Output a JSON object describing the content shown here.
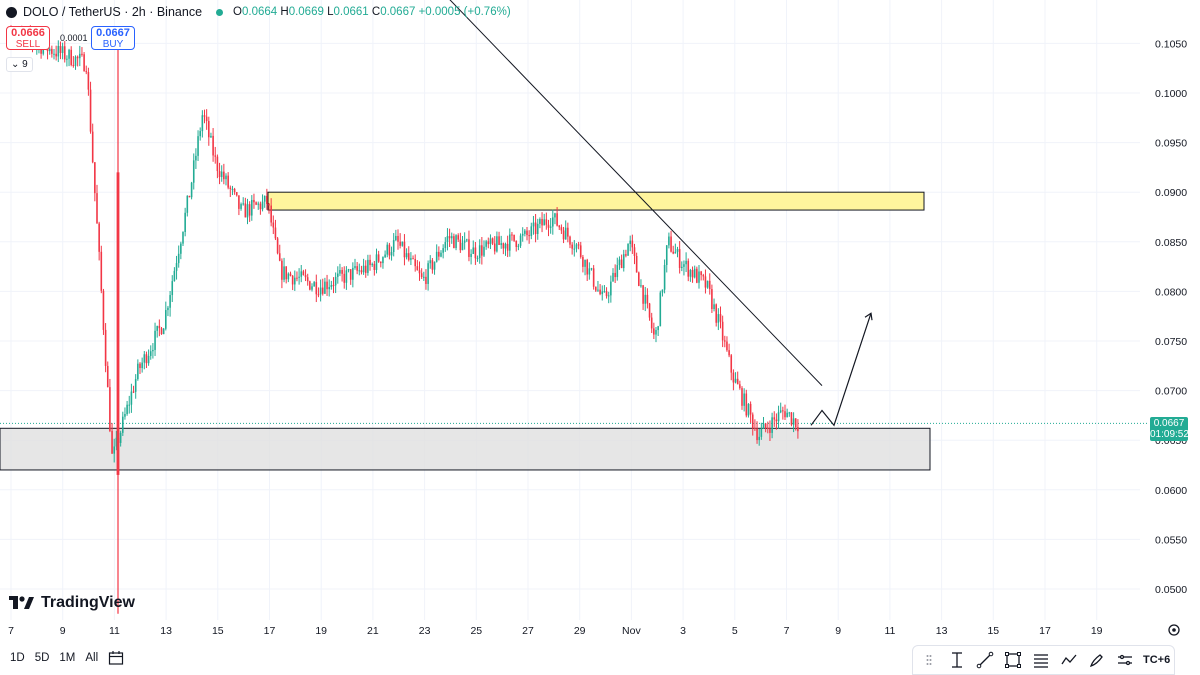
{
  "header": {
    "symbol": "DOLO / TetherUS · 2h · Binance",
    "open": "0.0664",
    "high": "0.0669",
    "low": "0.0661",
    "close": "0.0667",
    "change": "+0.0005 (+0.76%)"
  },
  "trade": {
    "sell_price": "0.0666",
    "sell_label": "SELL",
    "buy_price": "0.0667",
    "buy_label": "BUY",
    "spread": "0.0001"
  },
  "indicators_count": "9",
  "brand": "TradingView",
  "price_tag": {
    "price": "0.0667",
    "countdown": "01:09:52"
  },
  "bottom": {
    "ranges": [
      "1D",
      "5D",
      "1M",
      "All"
    ],
    "timezone": "TC+6"
  },
  "colors": {
    "up": "#22ab94",
    "down": "#f23645",
    "resistance_zone": "#fff59d",
    "support_zone": "#e0e0e0"
  },
  "icons": [
    "calendar-icon",
    "settings-icon",
    "vertical-line-icon",
    "trend-line-icon",
    "rectangle-icon",
    "fib-icon",
    "path-icon",
    "brush-icon",
    "measure-icon"
  ],
  "chart_data": {
    "type": "candlestick",
    "interval": "2h",
    "y_ticks": [
      "0.0500",
      "0.0550",
      "0.0600",
      "0.0650",
      "0.0700",
      "0.0750",
      "0.0800",
      "0.0850",
      "0.0900",
      "0.0950",
      "0.1000",
      "0.1050"
    ],
    "x_ticks": [
      "7",
      "9",
      "11",
      "13",
      "15",
      "17",
      "19",
      "21",
      "23",
      "25",
      "27",
      "29",
      "Nov",
      "3",
      "5",
      "7",
      "9",
      "11",
      "13",
      "15",
      "17",
      "19"
    ],
    "ylim": [
      0.048,
      0.108
    ],
    "last_price": 0.0667,
    "path": [
      [
        "7",
        0.106
      ],
      [
        "9",
        0.104
      ],
      [
        "10",
        0.103
      ],
      [
        "11",
        0.063
      ],
      [
        "12",
        0.072
      ],
      [
        "13",
        0.077
      ],
      [
        "14",
        0.09
      ],
      [
        "14.5",
        0.098
      ],
      [
        "15",
        0.093
      ],
      [
        "16",
        0.088
      ],
      [
        "17",
        0.089
      ],
      [
        "17.5",
        0.082
      ],
      [
        "19",
        0.0805
      ],
      [
        "21",
        0.0825
      ],
      [
        "22",
        0.085
      ],
      [
        "23",
        0.081
      ],
      [
        "24",
        0.0855
      ],
      [
        "25",
        0.084
      ],
      [
        "27",
        0.0855
      ],
      [
        "28",
        0.0875
      ],
      [
        "29",
        0.0845
      ],
      [
        "30",
        0.079
      ],
      [
        "31",
        0.085
      ],
      [
        "Nov",
        0.075
      ],
      [
        "1.5",
        0.085
      ],
      [
        "2",
        0.083
      ],
      [
        "3",
        0.0805
      ],
      [
        "3.5",
        0.0765
      ],
      [
        "4",
        0.0715
      ],
      [
        "5",
        0.0655
      ],
      [
        "6",
        0.068
      ],
      [
        "6.5",
        0.0667
      ]
    ],
    "annotations": {
      "resistance_zone": [
        0.0882,
        0.09
      ],
      "support_zone": [
        0.062,
        0.0662
      ],
      "trendline": [
        [
          "2.5",
          0.112
        ],
        [
          "7",
          0.0705
        ]
      ],
      "projection": [
        [
          "6.5",
          0.0665
        ],
        [
          "7",
          0.068
        ],
        [
          "7.3",
          0.0665
        ],
        [
          "8.2",
          0.0778
        ]
      ]
    }
  }
}
